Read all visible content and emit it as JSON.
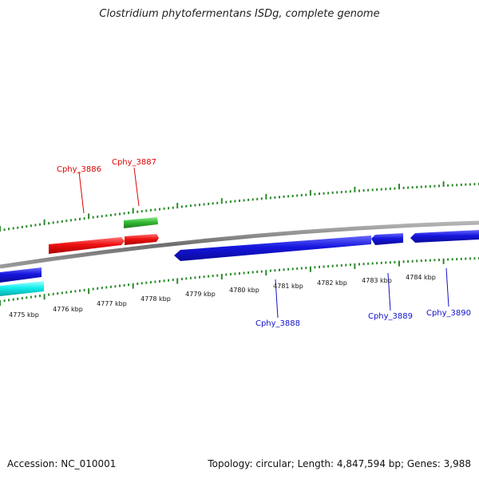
{
  "header": {
    "title": "Clostridium phytofermentans ISDg, complete genome"
  },
  "footer": {
    "accession": "Accession: NC_010001",
    "summary": "Topology: circular; Length: 4,847,594 bp; Genes: 3,988"
  },
  "colors": {
    "backbone": "#7a7a7a",
    "tick": "#2b8a2b",
    "forward_gene_label": "#dd0000",
    "reverse_gene_label": "#1111cc",
    "red_gene": "#ee1111",
    "green_gene": "#33bb33",
    "blue_gene": "#1515dd",
    "cyan_gene": "#11eeee"
  },
  "scale_labels": [
    "4775 kbp",
    "4776 kbp",
    "4777 kbp",
    "4778 kbp",
    "4779 kbp",
    "4780 kbp",
    "4781 kbp",
    "4782 kbp",
    "4783 kbp",
    "4784 kbp"
  ],
  "gene_labels": {
    "forward": [
      "Cphy_3886",
      "Cphy_3887"
    ],
    "reverse": [
      "Cphy_3888",
      "Cphy_3889",
      "Cphy_3890"
    ]
  },
  "genes": [
    {
      "name": "Cphy_3886",
      "strand": "forward",
      "color": "red"
    },
    {
      "name": "Cphy_3887",
      "strand": "forward",
      "color": "red"
    },
    {
      "name": "forward-green-feature",
      "strand": "forward",
      "color": "green"
    },
    {
      "name": "Cphy_3888",
      "strand": "reverse",
      "color": "blue"
    },
    {
      "name": "Cphy_3889",
      "strand": "reverse",
      "color": "blue"
    },
    {
      "name": "Cphy_3890",
      "strand": "reverse",
      "color": "blue"
    },
    {
      "name": "reverse-blue-left",
      "strand": "reverse",
      "color": "blue"
    },
    {
      "name": "reverse-cyan-left",
      "strand": "reverse",
      "color": "cyan"
    }
  ]
}
